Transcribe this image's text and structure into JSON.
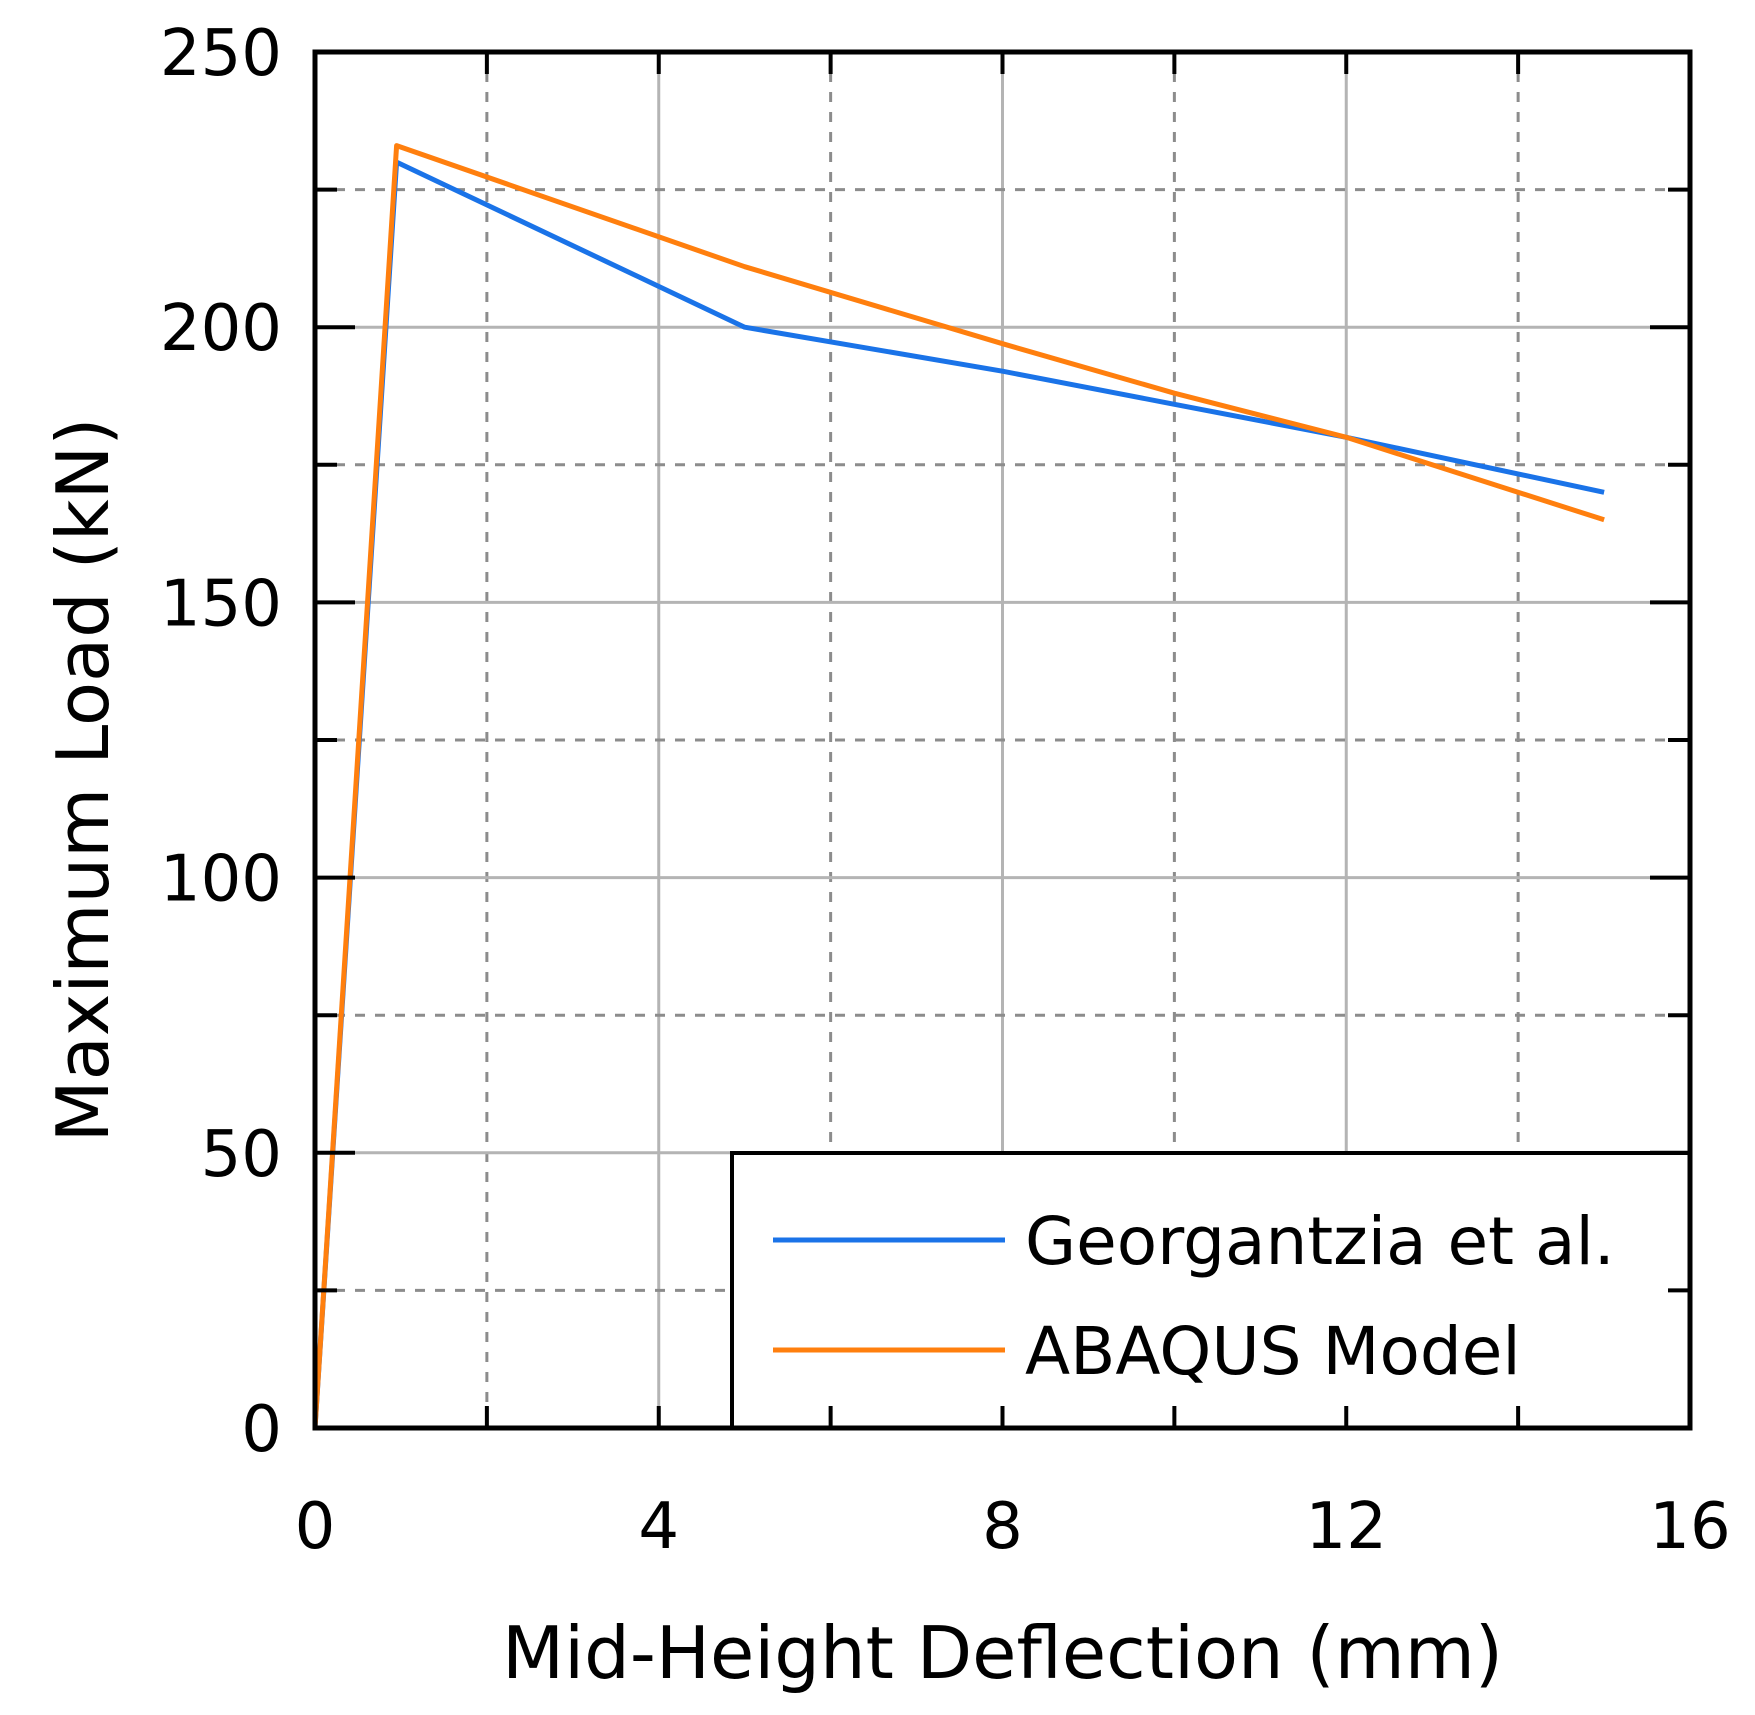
{
  "chart_data": {
    "type": "line",
    "xlabel": "Mid-Height Deflection (mm)",
    "ylabel": "Maximum Load (kN)",
    "xlim": [
      0,
      16
    ],
    "ylim": [
      0,
      250
    ],
    "x_ticks": [
      "0",
      "4",
      "8",
      "12",
      "16"
    ],
    "y_ticks": [
      "0",
      "50",
      "100",
      "150",
      "200",
      "250"
    ],
    "grid": true,
    "legend_position": "bottom-right",
    "series": [
      {
        "name": "Georgantzia et al.",
        "color": "#1a73e8",
        "x": [
          0,
          0.95,
          5,
          8,
          10,
          12,
          15
        ],
        "y": [
          0,
          230,
          200,
          192,
          186,
          180,
          170
        ]
      },
      {
        "name": "ABAQUS Model",
        "color": "#ff7f0e",
        "x": [
          0,
          0.95,
          5,
          8,
          10,
          12,
          15
        ],
        "y": [
          0,
          233,
          211,
          197,
          188,
          180,
          165
        ]
      }
    ]
  }
}
